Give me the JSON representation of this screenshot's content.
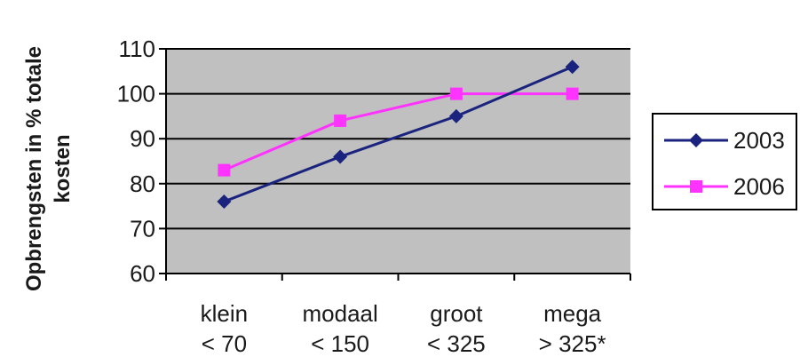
{
  "chart_data": {
    "type": "line",
    "ylabel_lines": [
      "Opbrengsten in % totale",
      "kosten"
    ],
    "xlabel": "",
    "categories": [
      {
        "line1": "klein",
        "line2": "< 70"
      },
      {
        "line1": "modaal",
        "line2": "< 150"
      },
      {
        "line1": "groot",
        "line2": "< 325"
      },
      {
        "line1": "mega",
        "line2": "> 325*"
      }
    ],
    "ylim": [
      60,
      110
    ],
    "yticks": [
      60,
      70,
      80,
      90,
      100,
      110
    ],
    "grid": true,
    "legend_position": "right",
    "series": [
      {
        "name": "2003",
        "values": [
          76,
          86,
          95,
          106
        ],
        "color": "#1a237e",
        "marker": "diamond"
      },
      {
        "name": "2006",
        "values": [
          83,
          94,
          100,
          100
        ],
        "color": "#ff33ff",
        "marker": "square"
      }
    ],
    "plot_background": "#c0c0c0"
  }
}
